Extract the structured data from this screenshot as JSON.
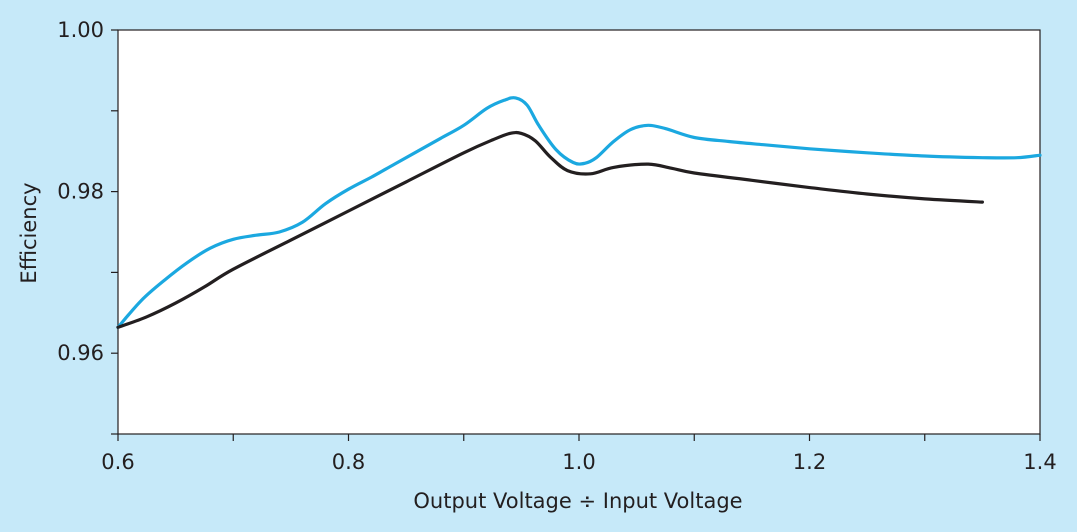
{
  "colors": {
    "background": "#c6e9f9",
    "plot_background": "#ffffff",
    "axis": "#231f20"
  },
  "chart_data": {
    "type": "line",
    "title": "",
    "xlabel": "Output Voltage ÷ Input Voltage",
    "ylabel": "Efficiency",
    "xlim": [
      0.6,
      1.4
    ],
    "ylim": [
      0.95,
      1.0
    ],
    "grid": false,
    "legend": "none",
    "x_ticks": [
      {
        "value": 0.6,
        "label": "0.6"
      },
      {
        "value": 0.7,
        "label": ""
      },
      {
        "value": 0.8,
        "label": "0.8"
      },
      {
        "value": 0.9,
        "label": ""
      },
      {
        "value": 1.0,
        "label": "1.0"
      },
      {
        "value": 1.1,
        "label": ""
      },
      {
        "value": 1.2,
        "label": "1.2"
      },
      {
        "value": 1.3,
        "label": ""
      },
      {
        "value": 1.4,
        "label": "1.4"
      }
    ],
    "y_ticks": [
      {
        "value": 0.95,
        "label": ""
      },
      {
        "value": 0.96,
        "label": "0.96"
      },
      {
        "value": 0.97,
        "label": ""
      },
      {
        "value": 0.98,
        "label": "0.98"
      },
      {
        "value": 0.99,
        "label": ""
      },
      {
        "value": 1.0,
        "label": "1.00"
      }
    ],
    "series": [
      {
        "color": "#1ba8e0",
        "points": [
          [
            0.6,
            0.9632
          ],
          [
            0.62,
            0.9665
          ],
          [
            0.64,
            0.969
          ],
          [
            0.66,
            0.9712
          ],
          [
            0.68,
            0.973
          ],
          [
            0.7,
            0.9741
          ],
          [
            0.72,
            0.9746
          ],
          [
            0.74,
            0.975
          ],
          [
            0.76,
            0.9762
          ],
          [
            0.78,
            0.9785
          ],
          [
            0.8,
            0.9803
          ],
          [
            0.82,
            0.9818
          ],
          [
            0.84,
            0.9834
          ],
          [
            0.86,
            0.985
          ],
          [
            0.88,
            0.9866
          ],
          [
            0.9,
            0.9882
          ],
          [
            0.92,
            0.9903
          ],
          [
            0.935,
            0.9913
          ],
          [
            0.945,
            0.9916
          ],
          [
            0.955,
            0.9907
          ],
          [
            0.965,
            0.9882
          ],
          [
            0.98,
            0.9852
          ],
          [
            0.995,
            0.9836
          ],
          [
            1.005,
            0.9835
          ],
          [
            1.015,
            0.9842
          ],
          [
            1.03,
            0.9862
          ],
          [
            1.045,
            0.9877
          ],
          [
            1.06,
            0.9882
          ],
          [
            1.075,
            0.9878
          ],
          [
            1.1,
            0.9867
          ],
          [
            1.13,
            0.9862
          ],
          [
            1.16,
            0.9858
          ],
          [
            1.2,
            0.9853
          ],
          [
            1.25,
            0.9848
          ],
          [
            1.3,
            0.9844
          ],
          [
            1.35,
            0.9842
          ],
          [
            1.38,
            0.9842
          ],
          [
            1.4,
            0.9845
          ]
        ]
      },
      {
        "color": "#231f20",
        "points": [
          [
            0.6,
            0.9632
          ],
          [
            0.625,
            0.9645
          ],
          [
            0.65,
            0.9662
          ],
          [
            0.675,
            0.9682
          ],
          [
            0.7,
            0.9704
          ],
          [
            0.75,
            0.974
          ],
          [
            0.8,
            0.9776
          ],
          [
            0.85,
            0.9812
          ],
          [
            0.9,
            0.9848
          ],
          [
            0.925,
            0.9864
          ],
          [
            0.94,
            0.9872
          ],
          [
            0.95,
            0.9872
          ],
          [
            0.962,
            0.9863
          ],
          [
            0.975,
            0.9843
          ],
          [
            0.99,
            0.9826
          ],
          [
            1.01,
            0.9822
          ],
          [
            1.03,
            0.983
          ],
          [
            1.06,
            0.9834
          ],
          [
            1.08,
            0.9829
          ],
          [
            1.1,
            0.9823
          ],
          [
            1.15,
            0.9814
          ],
          [
            1.2,
            0.9805
          ],
          [
            1.25,
            0.9797
          ],
          [
            1.3,
            0.9791
          ],
          [
            1.35,
            0.9787
          ]
        ]
      }
    ]
  }
}
